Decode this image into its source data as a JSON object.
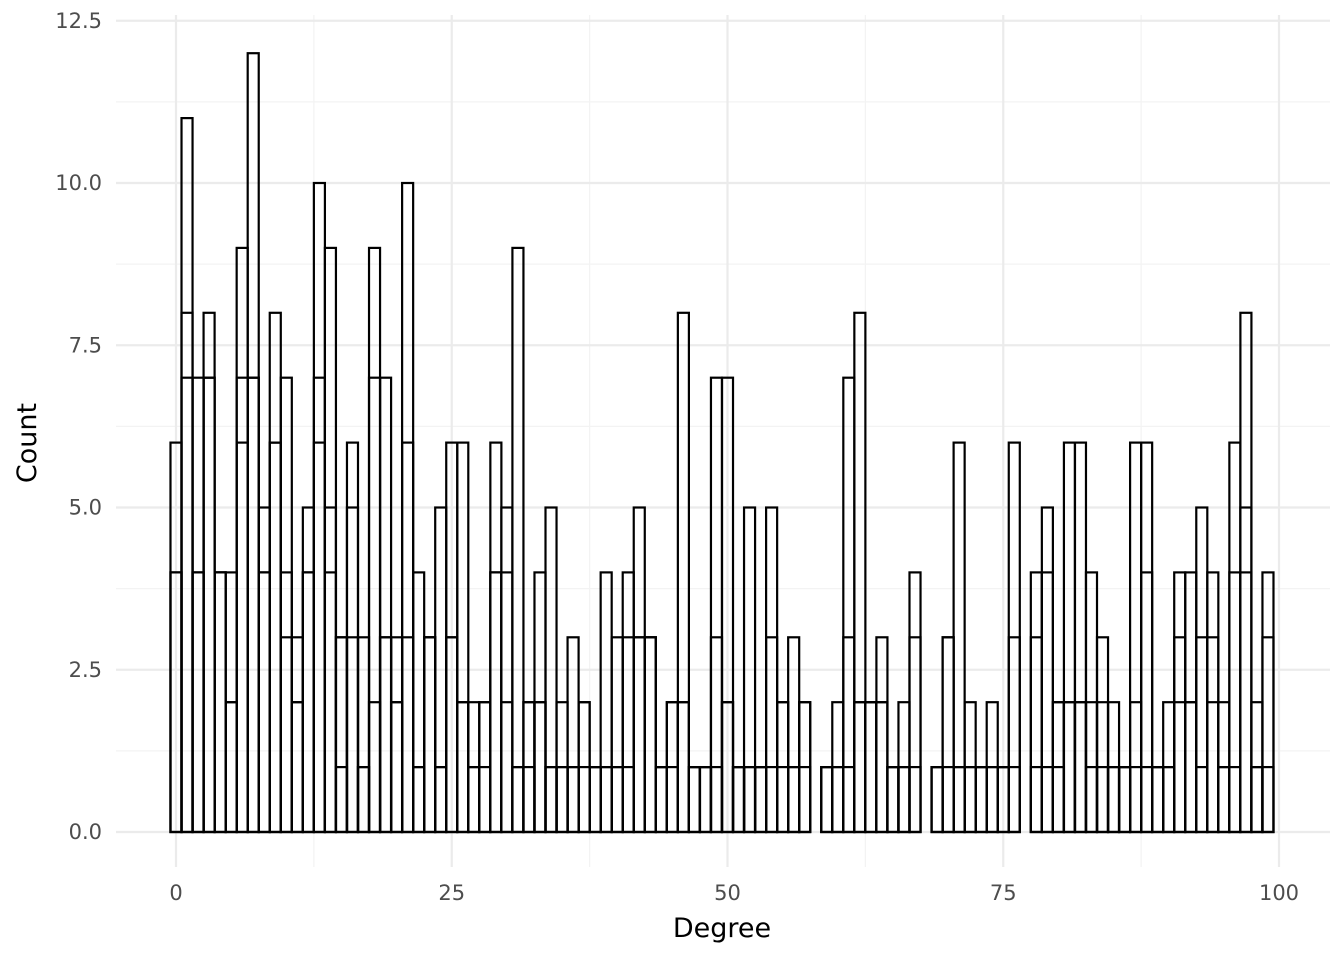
{
  "chart_data": {
    "type": "bar",
    "subtype": "histogram",
    "xlabel": "Degree",
    "ylabel": "Count",
    "x_ticks": [
      "0",
      "25",
      "50",
      "75",
      "100"
    ],
    "y_ticks": [
      "0.0",
      "2.5",
      "5.0",
      "7.5",
      "10.0",
      "12.5"
    ],
    "xlim": [
      -0.5,
      99.5
    ],
    "ylim": [
      0,
      12.5
    ],
    "bin_width": 1,
    "bins": [
      0,
      1,
      2,
      3,
      4,
      5,
      6,
      7,
      8,
      9,
      10,
      11,
      12,
      13,
      14,
      15,
      16,
      17,
      18,
      19,
      20,
      21,
      22,
      23,
      24,
      25,
      26,
      27,
      28,
      29,
      30,
      31,
      32,
      33,
      34,
      35,
      36,
      37,
      38,
      39,
      40,
      41,
      42,
      43,
      44,
      45,
      46,
      47,
      48,
      49,
      50,
      51,
      52,
      53,
      54,
      55,
      56,
      57,
      58,
      59,
      60,
      61,
      62,
      63,
      64,
      65,
      66,
      67,
      68,
      69,
      70,
      71,
      72,
      73,
      74,
      75,
      76,
      77,
      78,
      79,
      80,
      81,
      82,
      83,
      84,
      85,
      86,
      87,
      88,
      89,
      90,
      91,
      92,
      93,
      94,
      95,
      96,
      97,
      98,
      99
    ],
    "series": [
      {
        "values": [
          6,
          11,
          7,
          8,
          4,
          4,
          9,
          12,
          5,
          8,
          7,
          3,
          5,
          10,
          9,
          3,
          6,
          3,
          9,
          7,
          3,
          10,
          4,
          3,
          5,
          6,
          6,
          2,
          2,
          6,
          5,
          9,
          2,
          4,
          5,
          2,
          3,
          2,
          1,
          4,
          3,
          4,
          5,
          3,
          1,
          2,
          8,
          1,
          1,
          7,
          7,
          1,
          5,
          1,
          5,
          2,
          3,
          2,
          0,
          1,
          2,
          7,
          8,
          2,
          3,
          1,
          2,
          4,
          0,
          1,
          3,
          6,
          2,
          1,
          2,
          1,
          6,
          0,
          4,
          5,
          2,
          6,
          6,
          4,
          3,
          2,
          1,
          6,
          6,
          1,
          2,
          4,
          4,
          5,
          4,
          2,
          6,
          8,
          2,
          4
        ]
      },
      {
        "values": [
          4,
          8,
          4,
          7,
          4,
          2,
          7,
          7,
          4,
          6,
          4,
          2,
          4,
          7,
          5,
          3,
          5,
          1,
          7,
          3,
          2,
          6,
          1,
          3,
          1,
          3,
          2,
          1,
          2,
          4,
          4,
          1,
          2,
          2,
          1,
          1,
          1,
          2,
          1,
          1,
          1,
          3,
          3,
          3,
          1,
          2,
          2,
          1,
          1,
          3,
          2,
          1,
          1,
          1,
          3,
          2,
          1,
          2,
          0,
          1,
          1,
          3,
          2,
          2,
          2,
          1,
          1,
          3,
          0,
          1,
          3,
          1,
          1,
          1,
          1,
          1,
          3,
          0,
          3,
          4,
          2,
          2,
          2,
          2,
          2,
          1,
          1,
          2,
          4,
          1,
          1,
          3,
          2,
          3,
          3,
          1,
          4,
          5,
          1,
          3
        ]
      },
      {
        "values": [
          4,
          7,
          4,
          7,
          4,
          2,
          6,
          7,
          4,
          6,
          3,
          2,
          4,
          6,
          4,
          1,
          3,
          1,
          2,
          3,
          2,
          3,
          1,
          3,
          1,
          3,
          2,
          1,
          1,
          4,
          2,
          1,
          1,
          2,
          1,
          1,
          1,
          1,
          1,
          1,
          1,
          1,
          3,
          3,
          1,
          1,
          2,
          1,
          1,
          1,
          2,
          1,
          1,
          1,
          1,
          1,
          1,
          1,
          0,
          1,
          1,
          1,
          2,
          2,
          2,
          1,
          1,
          1,
          0,
          1,
          1,
          1,
          1,
          1,
          1,
          1,
          1,
          0,
          1,
          1,
          1,
          2,
          2,
          1,
          1,
          1,
          1,
          1,
          1,
          1,
          1,
          2,
          2,
          1,
          2,
          1,
          1,
          4,
          1,
          1
        ]
      }
    ]
  }
}
